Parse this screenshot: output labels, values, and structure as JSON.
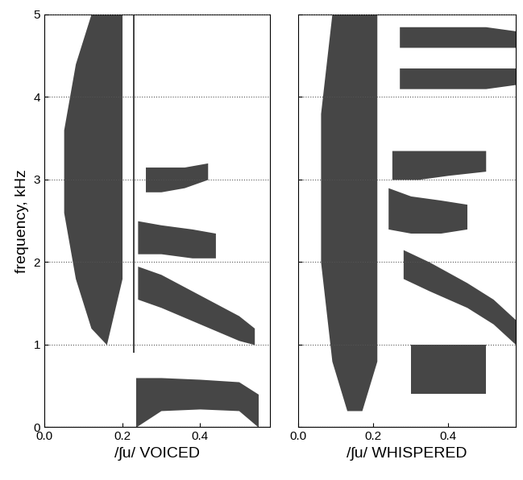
{
  "chart_data": [
    {
      "type": "spectrogram",
      "xlabel": "/ʃu/ VOICED",
      "ylabel": "frequency, kHz",
      "xlim": [
        0.0,
        0.58
      ],
      "ylim": [
        0,
        5
      ],
      "xticks": [
        0.0,
        0.2,
        0.4
      ],
      "yticks": [
        0,
        1,
        2,
        3,
        4,
        5
      ],
      "grid": true,
      "tick_labels": true,
      "color": "#262626",
      "bands": [
        {
          "x": [
            0.05,
            0.08,
            0.12,
            0.16,
            0.2
          ],
          "low": [
            2.6,
            1.8,
            1.2,
            1.0,
            1.8
          ],
          "high": [
            3.6,
            4.4,
            5.0,
            5.0,
            5.0
          ]
        },
        {
          "x": [
            0.228,
            0.233
          ],
          "low": [
            0.9,
            0.9
          ],
          "high": [
            5.0,
            5.0
          ]
        },
        {
          "x": [
            0.235,
            0.3,
            0.4,
            0.5,
            0.55
          ],
          "low": [
            0.0,
            0.2,
            0.22,
            0.2,
            0.0
          ],
          "high": [
            0.6,
            0.6,
            0.58,
            0.55,
            0.4
          ]
        },
        {
          "x": [
            0.24,
            0.3,
            0.4,
            0.5,
            0.54
          ],
          "low": [
            1.55,
            1.45,
            1.25,
            1.05,
            1.0
          ],
          "high": [
            1.95,
            1.85,
            1.6,
            1.35,
            1.2
          ]
        },
        {
          "x": [
            0.24,
            0.3,
            0.38,
            0.44
          ],
          "low": [
            2.1,
            2.1,
            2.05,
            2.05
          ],
          "high": [
            2.5,
            2.45,
            2.4,
            2.35
          ]
        },
        {
          "x": [
            0.26,
            0.3,
            0.36,
            0.42
          ],
          "low": [
            2.85,
            2.85,
            2.9,
            3.0
          ],
          "high": [
            3.15,
            3.15,
            3.15,
            3.2
          ]
        }
      ]
    },
    {
      "type": "spectrogram",
      "xlabel": "/ʃu/ WHISPERED",
      "xlim": [
        0.0,
        0.58
      ],
      "ylim": [
        0,
        5
      ],
      "xticks": [
        0.0,
        0.2,
        0.4
      ],
      "yticks": [
        0,
        1,
        2,
        3,
        4,
        5
      ],
      "grid": true,
      "tick_labels": "x",
      "color": "#262626",
      "bands": [
        {
          "x": [
            0.06,
            0.09,
            0.13,
            0.17,
            0.21
          ],
          "low": [
            2.0,
            0.8,
            0.2,
            0.2,
            0.8
          ],
          "high": [
            3.8,
            5.0,
            5.0,
            5.0,
            5.0
          ]
        },
        {
          "x": [
            0.28,
            0.35,
            0.45,
            0.52,
            0.58
          ],
          "low": [
            1.8,
            1.65,
            1.45,
            1.25,
            1.0
          ],
          "high": [
            2.15,
            2.0,
            1.75,
            1.55,
            1.3
          ]
        },
        {
          "x": [
            0.24,
            0.3,
            0.38,
            0.45
          ],
          "low": [
            2.4,
            2.35,
            2.35,
            2.4
          ],
          "high": [
            2.9,
            2.8,
            2.75,
            2.7
          ]
        },
        {
          "x": [
            0.25,
            0.32,
            0.4,
            0.5
          ],
          "low": [
            3.0,
            3.0,
            3.05,
            3.1
          ],
          "high": [
            3.35,
            3.35,
            3.35,
            3.35
          ]
        },
        {
          "x": [
            0.27,
            0.38,
            0.5,
            0.58
          ],
          "low": [
            4.1,
            4.1,
            4.1,
            4.15
          ],
          "high": [
            4.35,
            4.35,
            4.35,
            4.35
          ]
        },
        {
          "x": [
            0.27,
            0.38,
            0.5,
            0.58
          ],
          "low": [
            4.6,
            4.6,
            4.6,
            4.6
          ],
          "high": [
            4.85,
            4.85,
            4.85,
            4.8
          ]
        },
        {
          "x": [
            0.3,
            0.4,
            0.5
          ],
          "low": [
            0.4,
            0.4,
            0.4
          ],
          "high": [
            1.0,
            1.0,
            1.0
          ]
        }
      ]
    }
  ]
}
